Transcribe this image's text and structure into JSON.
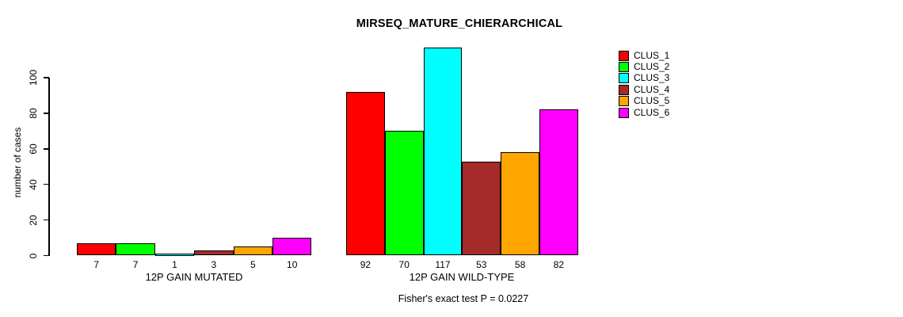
{
  "title": "MIRSEQ_MATURE_CHIERARCHICAL",
  "footnote": "Fisher's exact test P = 0.0227",
  "chart_data": {
    "type": "bar",
    "title": "MIRSEQ_MATURE_CHIERARCHICAL",
    "ylabel": "number of cases",
    "xlabel": "",
    "ylim": [
      0,
      100
    ],
    "y_ticks": [
      0,
      20,
      40,
      60,
      80,
      100
    ],
    "grid": false,
    "legend_position": "right",
    "categories": [
      "12P GAIN MUTATED",
      "12P GAIN WILD-TYPE"
    ],
    "series": [
      {
        "name": "CLUS_1",
        "color": "#FF0000",
        "values": [
          7,
          92
        ]
      },
      {
        "name": "CLUS_2",
        "color": "#00FF00",
        "values": [
          7,
          70
        ]
      },
      {
        "name": "CLUS_3",
        "color": "#00FFFF",
        "values": [
          1,
          117
        ]
      },
      {
        "name": "CLUS_4",
        "color": "#A52A2A",
        "values": [
          3,
          53
        ]
      },
      {
        "name": "CLUS_5",
        "color": "#FFA500",
        "values": [
          5,
          58
        ]
      },
      {
        "name": "CLUS_6",
        "color": "#FF00FF",
        "values": [
          10,
          82
        ]
      }
    ],
    "bar_value_labels": true,
    "annotation": "Fisher's exact test P = 0.0227"
  }
}
